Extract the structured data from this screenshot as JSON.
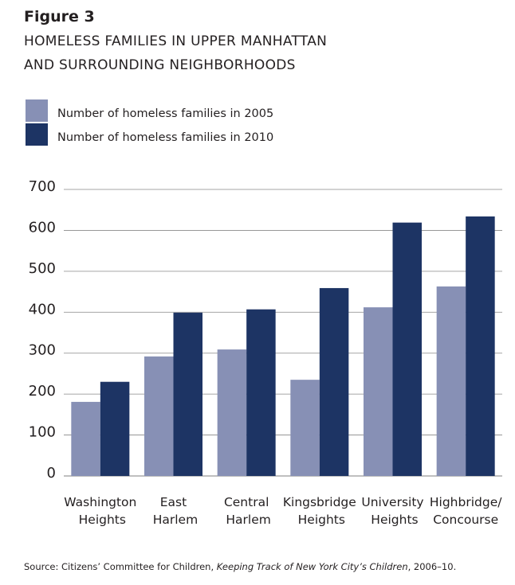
{
  "chart_data": {
    "type": "bar",
    "title": "Figure 3",
    "subtitle": [
      "HOMELESS FAMILIES IN UPPER MANHATTAN",
      "AND SURROUNDING NEIGHBORHOODS"
    ],
    "categories": [
      "Washington Heights",
      "East Harlem",
      "Central Harlem",
      "Kingsbridge Heights",
      "University Heights",
      "Highbridge/Concourse"
    ],
    "series": [
      {
        "name": "Number of homeless families in 2005",
        "color": "#8790b5",
        "values": [
          181,
          292,
          309,
          235,
          412,
          463
        ]
      },
      {
        "name": "Number of homeless families in 2010",
        "color": "#1d3464",
        "values": [
          230,
          399,
          407,
          459,
          619,
          634
        ]
      }
    ],
    "ylim": [
      0,
      700
    ],
    "yticks": [
      0,
      100,
      200,
      300,
      400,
      500,
      600,
      700
    ],
    "grid": true,
    "source": {
      "prefix": "Source: Citizens’ Committee for Children, ",
      "title": "Keeping Track of New York City’s Children",
      "suffix": ", 2006–10."
    }
  }
}
